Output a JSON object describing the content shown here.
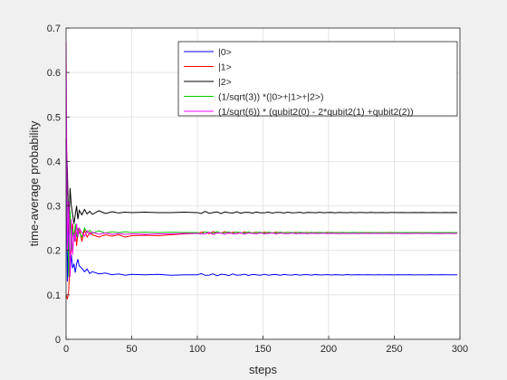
{
  "chart_data": {
    "type": "line",
    "title": "",
    "xlabel": "steps",
    "ylabel": "time-average probability",
    "xlim": [
      0,
      300
    ],
    "ylim": [
      0,
      0.7
    ],
    "xticks": [
      0,
      50,
      100,
      150,
      200,
      250,
      300
    ],
    "yticks": [
      0,
      0.1,
      0.2,
      0.3,
      0.4,
      0.5,
      0.6,
      0.7
    ],
    "grid": true,
    "legend_position": "top-right",
    "series": [
      {
        "name": "|0>",
        "color": "#0000ff",
        "steady": 0.145,
        "x": [
          0,
          1,
          2,
          3,
          4,
          5,
          6,
          7,
          8,
          9,
          10,
          12,
          14,
          16,
          18,
          20,
          25,
          30,
          35,
          40,
          45,
          50,
          60,
          70,
          80,
          90,
          100
        ],
        "y": [
          0.45,
          0.13,
          0.24,
          0.15,
          0.19,
          0.16,
          0.17,
          0.15,
          0.17,
          0.18,
          0.165,
          0.16,
          0.152,
          0.158,
          0.148,
          0.152,
          0.147,
          0.149,
          0.145,
          0.147,
          0.144,
          0.146,
          0.145,
          0.146,
          0.144,
          0.145,
          0.145
        ]
      },
      {
        "name": "|1>",
        "color": "#ff0000",
        "steady": 0.24,
        "x": [
          0,
          1,
          2,
          3,
          4,
          5,
          6,
          7,
          8,
          9,
          10,
          12,
          14,
          16,
          18,
          20,
          25,
          30,
          35,
          40,
          45,
          50,
          60,
          70,
          80,
          90,
          100
        ],
        "y": [
          0.1,
          0.09,
          0.11,
          0.18,
          0.2,
          0.26,
          0.22,
          0.25,
          0.21,
          0.24,
          0.25,
          0.22,
          0.245,
          0.23,
          0.24,
          0.235,
          0.23,
          0.235,
          0.232,
          0.235,
          0.23,
          0.233,
          0.234,
          0.233,
          0.235,
          0.237,
          0.238
        ]
      },
      {
        "name": "|2>",
        "color": "#000000",
        "steady": 0.285,
        "x": [
          0,
          1,
          2,
          3,
          4,
          5,
          6,
          7,
          8,
          9,
          10,
          12,
          14,
          16,
          18,
          20,
          25,
          30,
          35,
          40,
          45,
          50,
          60,
          70,
          80,
          90,
          100
        ],
        "y": [
          0.45,
          0.38,
          0.24,
          0.34,
          0.3,
          0.28,
          0.26,
          0.28,
          0.3,
          0.27,
          0.29,
          0.28,
          0.292,
          0.282,
          0.288,
          0.281,
          0.289,
          0.283,
          0.287,
          0.284,
          0.286,
          0.285,
          0.286,
          0.285,
          0.285,
          0.286,
          0.285
        ]
      },
      {
        "name": "(1/sqrt(3)) *(|0>+|1>+|2>)",
        "color": "#00c800",
        "steady": 0.24,
        "x": [
          0,
          1,
          2,
          3,
          4,
          5,
          6,
          7,
          8,
          9,
          10,
          12,
          14,
          16,
          18,
          20,
          25,
          30,
          35,
          40,
          45,
          50,
          60,
          70,
          80,
          90,
          100
        ],
        "y": [
          0.33,
          0.32,
          0.14,
          0.29,
          0.2,
          0.25,
          0.22,
          0.26,
          0.23,
          0.25,
          0.24,
          0.23,
          0.25,
          0.24,
          0.245,
          0.238,
          0.244,
          0.239,
          0.242,
          0.24,
          0.242,
          0.24,
          0.241,
          0.24,
          0.241,
          0.24,
          0.24
        ]
      },
      {
        "name": "(1/sqrt(6)) * (qubit2(0) - 2*qubit2(1) +qubit2(2))",
        "color": "#ff00ff",
        "steady": 0.238,
        "x": [
          0,
          1,
          2,
          3,
          4,
          5,
          6,
          7,
          8,
          9,
          10,
          12,
          14,
          16,
          18,
          20,
          25,
          30,
          35,
          40,
          45,
          50,
          60,
          70,
          80,
          90,
          100
        ],
        "y": [
          0.67,
          0.2,
          0.31,
          0.14,
          0.27,
          0.19,
          0.24,
          0.22,
          0.26,
          0.23,
          0.25,
          0.24,
          0.232,
          0.244,
          0.236,
          0.241,
          0.236,
          0.239,
          0.236,
          0.238,
          0.236,
          0.237,
          0.236,
          0.237,
          0.237,
          0.238,
          0.238
        ]
      }
    ]
  }
}
